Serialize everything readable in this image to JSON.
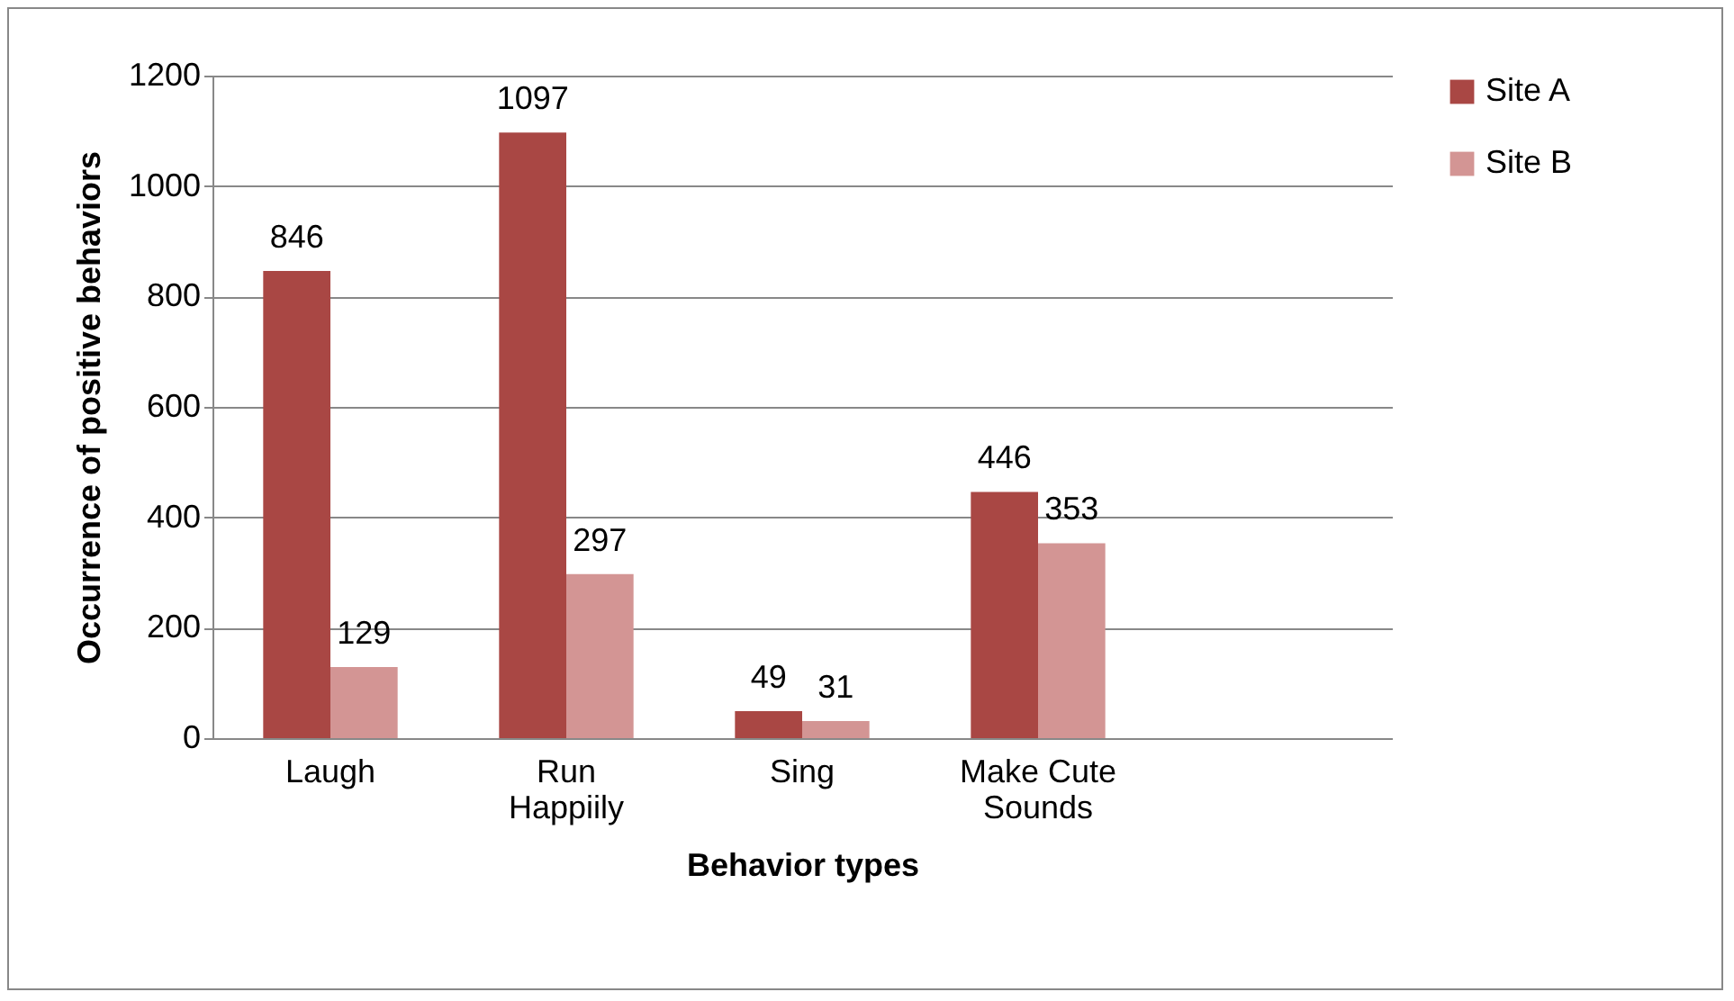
{
  "chart_data": {
    "type": "bar",
    "xlabel": "Behavior types",
    "ylabel": "Occurrence of positive behaviors",
    "categories": [
      "Laugh",
      "Run Happiily",
      "Sing",
      "Make Cute Sounds",
      null
    ],
    "series": [
      {
        "name": "Site A",
        "color": "#a94744",
        "values": [
          846,
          1097,
          49,
          446,
          null
        ]
      },
      {
        "name": "Site B",
        "color": "#d39594",
        "values": [
          129,
          297,
          31,
          353,
          null
        ]
      }
    ],
    "ylim": [
      0,
      1200
    ],
    "yticks": [
      0,
      200,
      400,
      600,
      800,
      1000,
      1200
    ],
    "grid": "y",
    "legend": "right",
    "data_labels": true
  }
}
